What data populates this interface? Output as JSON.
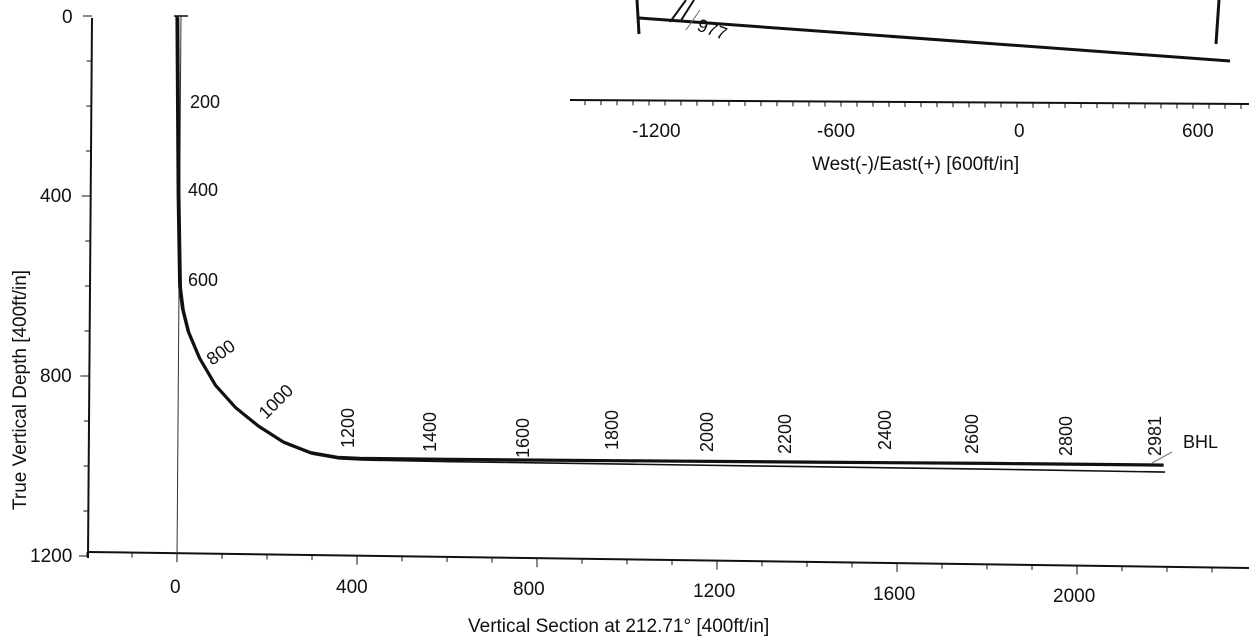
{
  "chart_data": [
    {
      "type": "line",
      "title": "",
      "xlabel": "Vertical Section at 212.71° [400ft/in]",
      "ylabel": "True Vertical Depth [400ft/in]",
      "xlim": [
        -200,
        2400
      ],
      "ylim": [
        1200,
        0
      ],
      "x_ticks": [
        "0",
        "400",
        "800",
        "1200",
        "1600",
        "2000"
      ],
      "y_ticks": [
        "0",
        "400",
        "800",
        "1200"
      ],
      "series": [
        {
          "name": "",
          "x": [
            0,
            0,
            0,
            2,
            8,
            20,
            45,
            80,
            125,
            175,
            230,
            290,
            350,
            400,
            600,
            1000,
            1400,
            1800,
            2186
          ],
          "y": [
            0,
            200,
            400,
            600,
            650,
            700,
            760,
            820,
            870,
            910,
            945,
            968,
            978,
            980,
            981,
            981,
            981,
            981,
            982
          ]
        }
      ],
      "md_labels": [
        "200",
        "400",
        "600",
        "800",
        "1000",
        "1200",
        "1400",
        "1600",
        "1800",
        "2000",
        "2200",
        "2400",
        "2600",
        "2800",
        "2981"
      ],
      "annotation": "BHL"
    },
    {
      "type": "line",
      "xlabel": "West(-)/East(+) [600ft/in]",
      "x_ticks": [
        "-1200",
        "-600",
        "0",
        "600"
      ],
      "annotation": "977"
    }
  ]
}
